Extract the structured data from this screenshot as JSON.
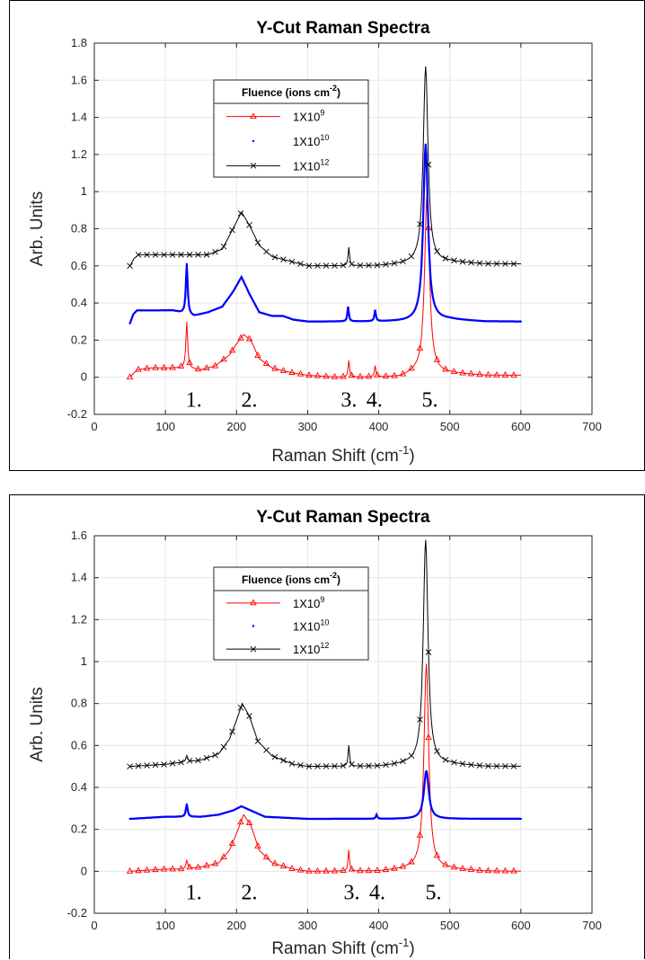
{
  "chart_data": [
    {
      "type": "line",
      "title": "Y-Cut Raman Spectra",
      "xlabel": "Raman Shift (cm",
      "xlabel_sup": "-1",
      "xlabel_end": ")",
      "ylabel": "Arb. Units",
      "xlim": [
        0,
        700
      ],
      "ylim": [
        -0.2,
        1.8
      ],
      "xticks": [
        0,
        100,
        200,
        300,
        400,
        500,
        600,
        700
      ],
      "yticks": [
        -0.2,
        0,
        0.2,
        0.4,
        0.6,
        0.8,
        1,
        1.2,
        1.4,
        1.6,
        1.8
      ],
      "grid": true,
      "legend": {
        "title": "Fluence (ions cm",
        "title_sup": "-2",
        "title_end": ")",
        "placement": "upper-left"
      },
      "peak_labels": [
        {
          "text": "1.",
          "x": 140
        },
        {
          "text": "2.",
          "x": 218
        },
        {
          "text": "3.",
          "x": 358
        },
        {
          "text": "4.",
          "x": 394
        },
        {
          "text": "5.",
          "x": 472
        }
      ],
      "peak_label_y": -0.12,
      "series": [
        {
          "name": "1X10",
          "name_sup": "9",
          "color": "#ff0000",
          "marker": "triangle",
          "baseline": [
            [
              50,
              0.0
            ],
            [
              60,
              0.04
            ],
            [
              80,
              0.05
            ],
            [
              110,
              0.05
            ],
            [
              125,
              0.05
            ],
            [
              150,
              0.04
            ],
            [
              170,
              0.06
            ],
            [
              190,
              0.12
            ],
            [
              200,
              0.18
            ],
            [
              210,
              0.23
            ],
            [
              220,
              0.2
            ],
            [
              232,
              0.1
            ],
            [
              250,
              0.05
            ],
            [
              270,
              0.03
            ],
            [
              300,
              0.01
            ],
            [
              340,
              0.0
            ],
            [
              380,
              0.0
            ],
            [
              430,
              0.0
            ],
            [
              450,
              0.02
            ],
            [
              500,
              0.02
            ],
            [
              550,
              0.01
            ],
            [
              600,
              0.01
            ]
          ],
          "peaks": [
            [
              130,
              0.25,
              1.5
            ],
            [
              358,
              0.09,
              1.2
            ],
            [
              395,
              0.06,
              1.2
            ],
            [
              468,
              0.98,
              4
            ]
          ],
          "marker_step": 12
        },
        {
          "name": "1X10",
          "name_sup": "10",
          "color": "#0000ff",
          "marker": "dot",
          "baseline": [
            [
              50,
              0.29
            ],
            [
              55,
              0.34
            ],
            [
              60,
              0.36
            ],
            [
              80,
              0.36
            ],
            [
              110,
              0.36
            ],
            [
              120,
              0.35
            ],
            [
              140,
              0.33
            ],
            [
              160,
              0.35
            ],
            [
              180,
              0.38
            ],
            [
              195,
              0.46
            ],
            [
              207,
              0.54
            ],
            [
              218,
              0.45
            ],
            [
              232,
              0.35
            ],
            [
              250,
              0.33
            ],
            [
              265,
              0.33
            ],
            [
              280,
              0.31
            ],
            [
              300,
              0.3
            ],
            [
              400,
              0.3
            ],
            [
              440,
              0.3
            ],
            [
              500,
              0.31
            ],
            [
              550,
              0.3
            ],
            [
              600,
              0.3
            ]
          ],
          "peaks": [
            [
              130,
              0.27,
              1.5
            ],
            [
              357,
              0.08,
              1.2
            ],
            [
              395,
              0.06,
              1.2
            ],
            [
              466,
              0.95,
              4
            ]
          ],
          "marker_step": 1
        },
        {
          "name": "1X10",
          "name_sup": "12",
          "color": "#000000",
          "marker": "x",
          "baseline": [
            [
              50,
              0.6
            ],
            [
              56,
              0.64
            ],
            [
              62,
              0.66
            ],
            [
              80,
              0.66
            ],
            [
              100,
              0.66
            ],
            [
              120,
              0.66
            ],
            [
              140,
              0.66
            ],
            [
              160,
              0.66
            ],
            [
              180,
              0.69
            ],
            [
              195,
              0.8
            ],
            [
              207,
              0.89
            ],
            [
              218,
              0.82
            ],
            [
              232,
              0.71
            ],
            [
              250,
              0.65
            ],
            [
              280,
              0.62
            ],
            [
              300,
              0.6
            ],
            [
              400,
              0.6
            ],
            [
              440,
              0.61
            ],
            [
              500,
              0.62
            ],
            [
              550,
              0.61
            ],
            [
              600,
              0.61
            ]
          ],
          "peaks": [
            [
              358,
              0.1,
              1.2
            ],
            [
              466,
              1.06,
              4
            ]
          ],
          "marker_step": 12
        }
      ]
    },
    {
      "type": "line",
      "title": "Y-Cut Raman Spectra",
      "xlabel": "Raman Shift (cm",
      "xlabel_sup": "-1",
      "xlabel_end": ")",
      "ylabel": "Arb. Units",
      "xlim": [
        0,
        700
      ],
      "ylim": [
        -0.2,
        1.6
      ],
      "xticks": [
        0,
        100,
        200,
        300,
        400,
        500,
        600,
        700
      ],
      "yticks": [
        -0.2,
        0,
        0.2,
        0.4,
        0.6,
        0.8,
        1,
        1.2,
        1.4,
        1.6
      ],
      "grid": true,
      "legend": {
        "title": "Fluence (ions cm",
        "title_sup": "-2",
        "title_end": ")",
        "placement": "upper-left"
      },
      "peak_labels": [
        {
          "text": "1.",
          "x": 140
        },
        {
          "text": "2.",
          "x": 218
        },
        {
          "text": "3.",
          "x": 362
        },
        {
          "text": "4.",
          "x": 398
        },
        {
          "text": "5.",
          "x": 477
        }
      ],
      "peak_label_y": -0.1,
      "series": [
        {
          "name": "1X10",
          "name_sup": "9",
          "color": "#ff0000",
          "marker": "triangle",
          "baseline": [
            [
              50,
              0.0
            ],
            [
              100,
              0.01
            ],
            [
              125,
              0.01
            ],
            [
              150,
              0.02
            ],
            [
              175,
              0.04
            ],
            [
              190,
              0.1
            ],
            [
              200,
              0.18
            ],
            [
              210,
              0.27
            ],
            [
              220,
              0.22
            ],
            [
              232,
              0.1
            ],
            [
              250,
              0.04
            ],
            [
              280,
              0.01
            ],
            [
              300,
              0.0
            ],
            [
              400,
              0.0
            ],
            [
              440,
              0.01
            ],
            [
              500,
              0.01
            ],
            [
              550,
              0.0
            ],
            [
              600,
              0.0
            ]
          ],
          "peaks": [
            [
              130,
              0.04,
              1.5
            ],
            [
              358,
              0.1,
              1.2
            ],
            [
              467,
              0.98,
              4
            ]
          ],
          "marker_step": 12
        },
        {
          "name": "1X10",
          "name_sup": "10",
          "color": "#0000ff",
          "marker": "dot",
          "baseline": [
            [
              50,
              0.25
            ],
            [
              100,
              0.26
            ],
            [
              125,
              0.26
            ],
            [
              150,
              0.26
            ],
            [
              175,
              0.27
            ],
            [
              195,
              0.29
            ],
            [
              207,
              0.31
            ],
            [
              220,
              0.29
            ],
            [
              240,
              0.26
            ],
            [
              300,
              0.25
            ],
            [
              400,
              0.25
            ],
            [
              440,
              0.25
            ],
            [
              500,
              0.25
            ],
            [
              550,
              0.25
            ],
            [
              600,
              0.25
            ]
          ],
          "peaks": [
            [
              130,
              0.06,
              1.5
            ],
            [
              397,
              0.02,
              1.2
            ],
            [
              467,
              0.23,
              4
            ]
          ],
          "marker_step": 1
        },
        {
          "name": "1X10",
          "name_sup": "12",
          "color": "#000000",
          "marker": "x",
          "baseline": [
            [
              50,
              0.5
            ],
            [
              100,
              0.51
            ],
            [
              125,
              0.52
            ],
            [
              150,
              0.53
            ],
            [
              175,
              0.56
            ],
            [
              190,
              0.63
            ],
            [
              200,
              0.72
            ],
            [
              208,
              0.8
            ],
            [
              218,
              0.74
            ],
            [
              230,
              0.62
            ],
            [
              250,
              0.55
            ],
            [
              280,
              0.51
            ],
            [
              300,
              0.5
            ],
            [
              400,
              0.5
            ],
            [
              440,
              0.51
            ],
            [
              500,
              0.51
            ],
            [
              550,
              0.5
            ],
            [
              600,
              0.5
            ]
          ],
          "peaks": [
            [
              130,
              0.03,
              1.5
            ],
            [
              358,
              0.1,
              1.2
            ],
            [
              466,
              1.07,
              4
            ]
          ],
          "marker_step": 12
        }
      ]
    }
  ]
}
